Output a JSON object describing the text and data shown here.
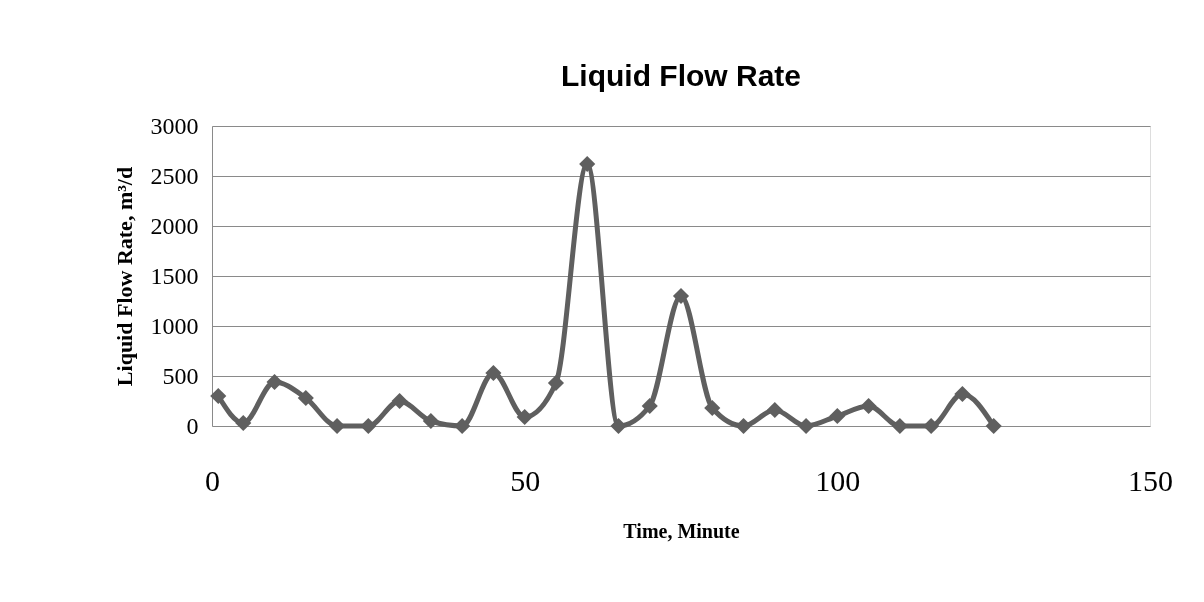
{
  "chart_data": {
    "type": "line",
    "title": "Liquid Flow Rate",
    "xlabel": "Time, Minute",
    "ylabel": "Liquid Flow Rate, m³/d",
    "x": [
      1,
      5,
      10,
      15,
      20,
      25,
      30,
      35,
      40,
      45,
      50,
      55,
      60,
      65,
      70,
      75,
      80,
      85,
      90,
      95,
      100,
      105,
      110,
      115,
      120,
      125
    ],
    "series": [
      {
        "color": "#5f5f5f",
        "values": [
          300,
          30,
          440,
          280,
          0,
          0,
          250,
          50,
          0,
          530,
          90,
          430,
          2620,
          0,
          200,
          1300,
          180,
          0,
          160,
          0,
          100,
          200,
          0,
          0,
          320,
          0
        ]
      }
    ],
    "xlim": [
      0,
      150
    ],
    "xticks": [
      0,
      50,
      100,
      150
    ],
    "ylim": [
      0,
      3000
    ],
    "yticks": [
      0,
      500,
      1000,
      1500,
      2000,
      2500,
      3000
    ],
    "grid": "y",
    "legend": false,
    "marker": "diamond",
    "line_style": "solid"
  }
}
